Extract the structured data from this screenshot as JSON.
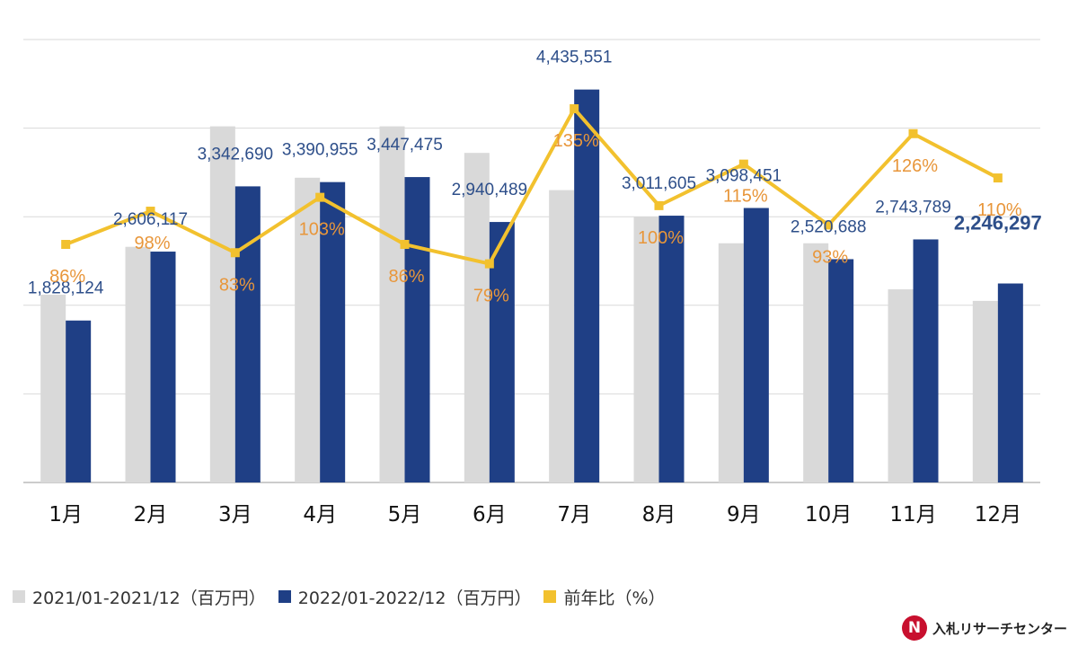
{
  "chart_data": {
    "type": "bar",
    "categories": [
      "1月",
      "2月",
      "3月",
      "4月",
      "5月",
      "6月",
      "7月",
      "8月",
      "9月",
      "10月",
      "11月",
      "12月"
    ],
    "series": [
      {
        "name": "2021/01-2021/12（百万円）",
        "color": "#d9d9d9",
        "values": [
          2120000,
          2660000,
          4020000,
          3440000,
          4020000,
          3720000,
          3300000,
          3000000,
          2700000,
          2700000,
          2180000,
          2050000
        ]
      },
      {
        "name": "2022/01-2022/12（百万円）",
        "color": "#1f3f85",
        "values": [
          1828124,
          2606117,
          3342690,
          3390955,
          3447475,
          2940489,
          4435551,
          3011605,
          3098451,
          2520688,
          2743789,
          2246297
        ]
      }
    ],
    "line": {
      "name": "前年比（%）",
      "color": "#f2c12e",
      "values": [
        86,
        98,
        83,
        103,
        86,
        79,
        135,
        100,
        115,
        93,
        126,
        110
      ]
    },
    "value_labels": [
      "1,828,124",
      "2,606,117",
      "3,342,690",
      "3,390,955",
      "3,447,475",
      "2,940,489",
      "4,435,551",
      "3,011,605",
      "3,098,451",
      "2,520,688",
      "2,743,789",
      "2,246,297"
    ],
    "percent_labels": [
      "86%",
      "98%",
      "83%",
      "103%",
      "86%",
      "79%",
      "135%",
      "100%",
      "115%",
      "93%",
      "126%",
      "110%"
    ],
    "value_label_color": "#2e4f8a",
    "percent_label_color": "#e8963a",
    "ylim_bars": [
      0,
      5000000
    ],
    "ylim_line": [
      0,
      160
    ],
    "grid": true
  },
  "legend": {
    "items": [
      {
        "label": "2021/01-2021/12（百万円）",
        "color": "#d9d9d9"
      },
      {
        "label": "2022/01-2022/12（百万円）",
        "color": "#1f3f85"
      },
      {
        "label": "前年比（%）",
        "color": "#f2c12e"
      }
    ]
  },
  "logo": {
    "mark": "N",
    "mark_color": "#c8102e",
    "text": "入札リサーチセンター"
  }
}
